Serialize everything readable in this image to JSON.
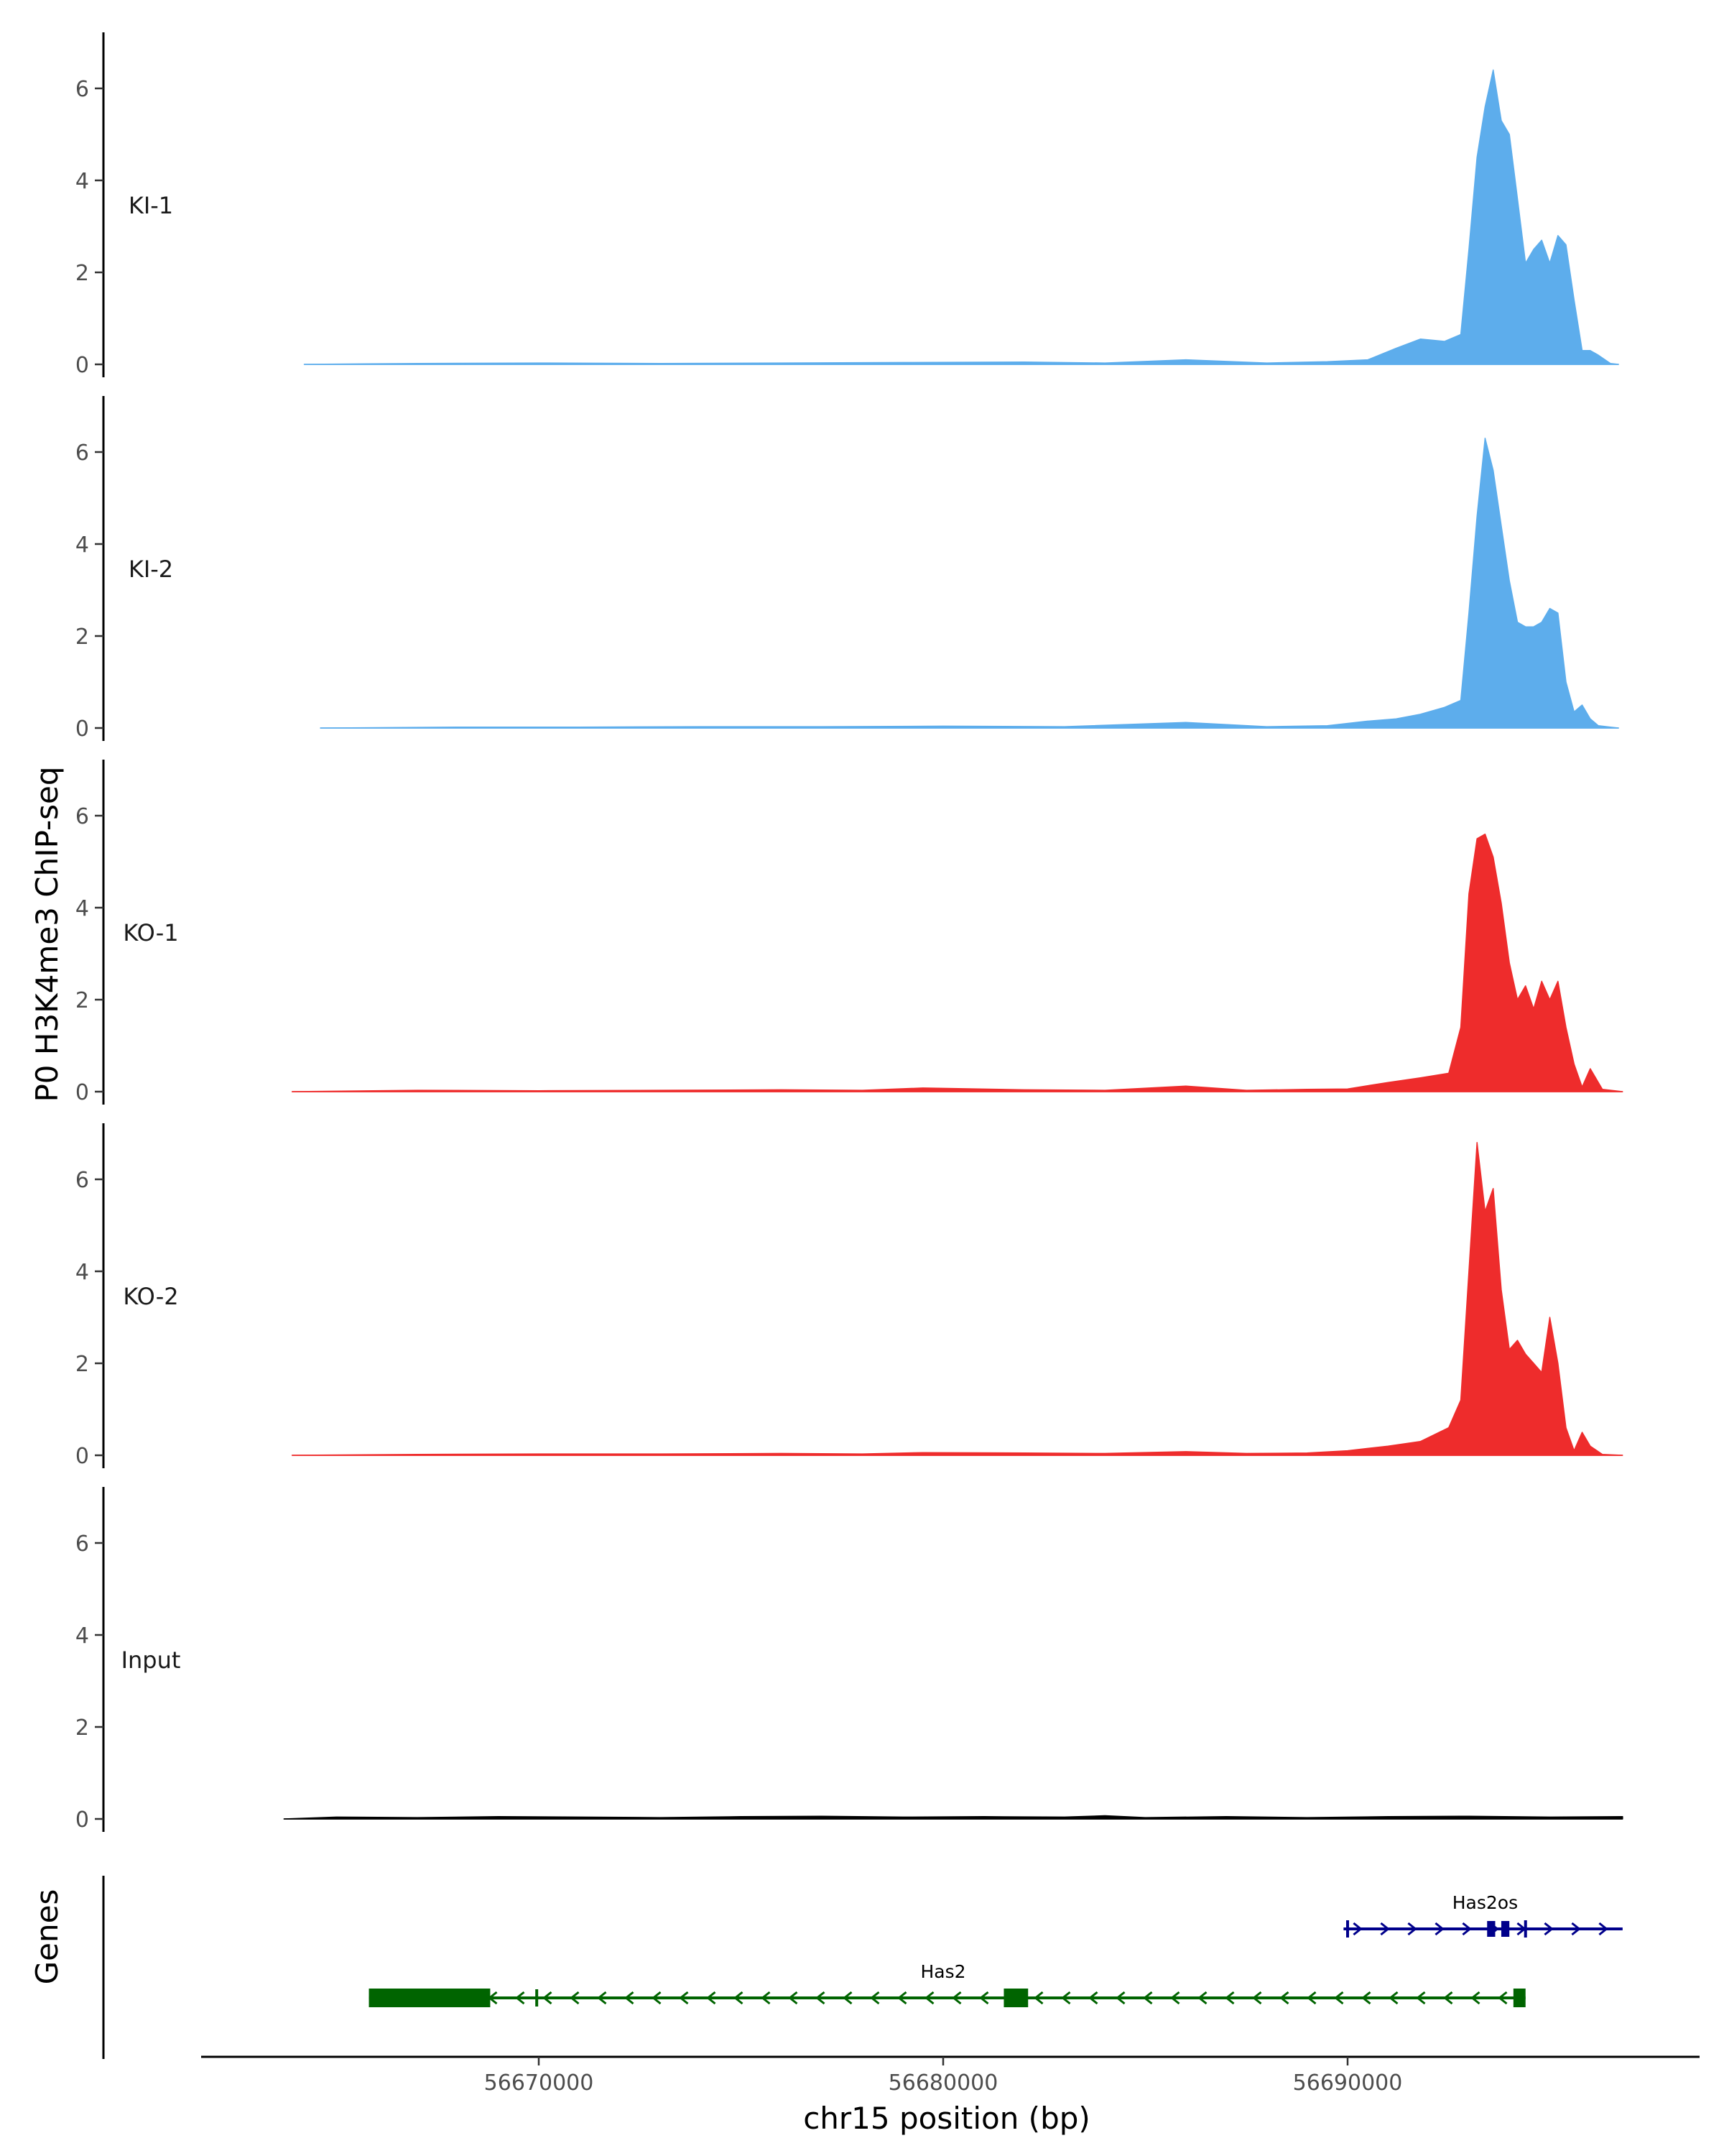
{
  "chart_data": {
    "type": "area",
    "ylabel": "P0 H3K4me3 ChIP-seq",
    "xlabel": "chr15 position (bp)",
    "genes_label": "Genes",
    "xlim": [
      56661500,
      56698500
    ],
    "ylim": [
      0,
      7
    ],
    "x_ticks": [
      {
        "value": 56670000,
        "label": "56670000"
      },
      {
        "value": 56680000,
        "label": "56680000"
      },
      {
        "value": 56690000,
        "label": "56690000"
      }
    ],
    "y_ticks": [
      {
        "value": 0,
        "label": "0"
      },
      {
        "value": 2,
        "label": "2"
      },
      {
        "value": 4,
        "label": "4"
      },
      {
        "value": 6,
        "label": "6"
      }
    ],
    "colors": {
      "KI": "#5DADEC",
      "KO": "#EE2C2C",
      "Input": "#000000",
      "gene_minus": "#006400",
      "gene_plus": "#00008B"
    },
    "tracks": [
      {
        "name": "KI-1",
        "color": "#5DADEC",
        "x": [
          56664200,
          56667000,
          56670000,
          56673000,
          56676000,
          56679000,
          56682000,
          56684000,
          56686000,
          56688000,
          56689500,
          56690500,
          56691200,
          56691800,
          56692400,
          56692800,
          56693000,
          56693200,
          56693400,
          56693600,
          56693800,
          56694000,
          56694200,
          56694400,
          56694600,
          56694800,
          56695000,
          56695200,
          56695400,
          56695600,
          56695800,
          56696000,
          56696200,
          56696500,
          56696700
        ],
        "y": [
          0,
          0.02,
          0.03,
          0.02,
          0.03,
          0.04,
          0.05,
          0.03,
          0.1,
          0.03,
          0.06,
          0.1,
          0.35,
          0.55,
          0.5,
          0.65,
          2.5,
          4.5,
          5.6,
          6.4,
          5.3,
          5.0,
          3.6,
          2.2,
          2.5,
          2.7,
          2.2,
          2.8,
          2.6,
          1.4,
          0.3,
          0.3,
          0.2,
          0.02,
          0
        ]
      },
      {
        "name": "KI-2",
        "color": "#5DADEC",
        "x": [
          56664600,
          56668000,
          56671000,
          56674000,
          56677000,
          56680000,
          56683000,
          56686000,
          56688000,
          56689500,
          56690500,
          56691200,
          56691800,
          56692400,
          56692800,
          56693000,
          56693200,
          56693400,
          56693600,
          56693800,
          56694000,
          56694200,
          56694400,
          56694600,
          56694800,
          56695000,
          56695200,
          56695400,
          56695600,
          56695800,
          56696000,
          56696200,
          56696500,
          56696700
        ],
        "y": [
          0,
          0.02,
          0.02,
          0.03,
          0.03,
          0.04,
          0.03,
          0.12,
          0.03,
          0.05,
          0.15,
          0.2,
          0.3,
          0.45,
          0.6,
          2.5,
          4.6,
          6.3,
          5.6,
          4.4,
          3.2,
          2.3,
          2.2,
          2.2,
          2.3,
          2.6,
          2.5,
          1.0,
          0.35,
          0.5,
          0.2,
          0.05,
          0.02,
          0
        ]
      },
      {
        "name": "KO-1",
        "color": "#EE2C2C",
        "x": [
          56663900,
          56667000,
          56670000,
          56673000,
          56676000,
          56678000,
          56679500,
          56682000,
          56684000,
          56686000,
          56687500,
          56689000,
          56690000,
          56691000,
          56691800,
          56692500,
          56692800,
          56693000,
          56693200,
          56693400,
          56693600,
          56693800,
          56694000,
          56694200,
          56694400,
          56694600,
          56694800,
          56695000,
          56695200,
          56695400,
          56695600,
          56695800,
          56696000,
          56696300,
          56696800
        ],
        "y": [
          0,
          0.03,
          0.02,
          0.03,
          0.04,
          0.03,
          0.08,
          0.04,
          0.03,
          0.12,
          0.03,
          0.05,
          0.06,
          0.2,
          0.3,
          0.4,
          1.4,
          4.3,
          5.5,
          5.6,
          5.1,
          4.1,
          2.8,
          2.0,
          2.3,
          1.8,
          2.4,
          2.0,
          2.4,
          1.4,
          0.6,
          0.1,
          0.5,
          0.05,
          0
        ]
      },
      {
        "name": "KO-2",
        "color": "#EE2C2C",
        "x": [
          56663900,
          56667000,
          56670000,
          56673000,
          56676000,
          56678000,
          56679500,
          56682000,
          56684000,
          56686000,
          56687500,
          56689000,
          56690000,
          56691000,
          56691800,
          56692500,
          56692800,
          56693000,
          56693200,
          56693400,
          56693600,
          56693800,
          56694000,
          56694200,
          56694400,
          56694600,
          56694800,
          56695000,
          56695200,
          56695400,
          56695600,
          56695800,
          56696000,
          56696300,
          56696800
        ],
        "y": [
          0,
          0.02,
          0.03,
          0.03,
          0.04,
          0.03,
          0.06,
          0.05,
          0.04,
          0.08,
          0.04,
          0.05,
          0.1,
          0.2,
          0.3,
          0.6,
          1.2,
          4.0,
          6.8,
          5.3,
          5.8,
          3.6,
          2.3,
          2.5,
          2.2,
          2.0,
          1.8,
          3.0,
          2.0,
          0.6,
          0.1,
          0.5,
          0.2,
          0.02,
          0
        ]
      },
      {
        "name": "Input",
        "color": "#000000",
        "x": [
          56663700,
          56665000,
          56667000,
          56669000,
          56671000,
          56673000,
          56675000,
          56677000,
          56679000,
          56681000,
          56683000,
          56684000,
          56685000,
          56687000,
          56689000,
          56691000,
          56693000,
          56695000,
          56696800
        ],
        "y": [
          0,
          0.04,
          0.03,
          0.05,
          0.04,
          0.03,
          0.05,
          0.06,
          0.04,
          0.05,
          0.04,
          0.07,
          0.03,
          0.05,
          0.03,
          0.05,
          0.06,
          0.04,
          0.05
        ]
      }
    ],
    "genes": [
      {
        "name": "Has2",
        "strand": "-",
        "start": 56665800,
        "end": 56694400,
        "exons": [
          [
            56665800,
            56668800
          ],
          [
            56681500,
            56682100
          ],
          [
            56694100,
            56694400
          ]
        ],
        "utr_marks": [
          56669950
        ],
        "color": "#006400"
      },
      {
        "name": "Has2os",
        "strand": "+",
        "start": 56689900,
        "end": 56696800,
        "exons": [
          [
            56693450,
            56693650
          ],
          [
            56693800,
            56694000
          ]
        ],
        "utr_marks": [
          56690000,
          56694400
        ],
        "color": "#00008B"
      }
    ]
  }
}
